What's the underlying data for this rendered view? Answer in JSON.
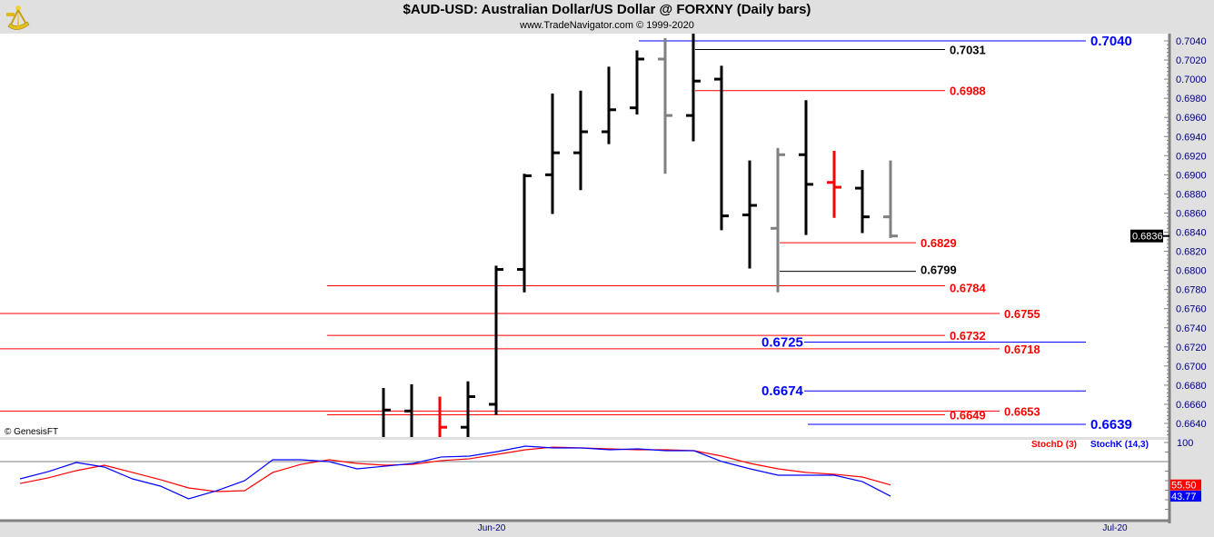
{
  "header": {
    "title": "$AUD-USD:  Australian Dollar/US Dollar @ FORXNY  (Daily bars)",
    "subtitle": "www.TradeNavigator.com © 1999-2020",
    "logo_icon": "sextant-icon"
  },
  "copyright": "© GenesisFT",
  "colors": {
    "up": "#000000",
    "down_gray": "#808080",
    "red": "#ff0000",
    "blue": "#0000ff",
    "panel_bg": "#ffffff",
    "frame_bg": "#e0e0e0"
  },
  "chart_data": [
    {
      "type": "ohlc",
      "title": "$AUD-USD:  Australian Dollar/US Dollar @ FORXNY  (Daily bars)",
      "ylim": [
        0.662,
        0.705
      ],
      "y_ticks": [
        "0.7040",
        "0.7020",
        "0.7000",
        "0.6980",
        "0.6960",
        "0.6940",
        "0.6920",
        "0.6900",
        "0.6880",
        "0.6860",
        "0.6840",
        "0.6820",
        "0.6800",
        "0.6780",
        "0.6760",
        "0.6740",
        "0.6720",
        "0.6700",
        "0.6680",
        "0.6660",
        "0.6640"
      ],
      "x_ticks": [
        {
          "label": "Jun-20",
          "index": 18
        },
        {
          "label": "Jul-20",
          "index": 40
        }
      ],
      "last_price": "0.6836",
      "bars": [
        {
          "o": null,
          "h": 0.6677,
          "l": 0.662,
          "c": 0.6654,
          "color": "black"
        },
        {
          "o": 0.6653,
          "h": 0.6681,
          "l": 0.662,
          "c": null,
          "color": "black"
        },
        {
          "o": null,
          "h": 0.6668,
          "l": 0.662,
          "c": 0.6636,
          "color": "red"
        },
        {
          "o": 0.6636,
          "h": 0.6684,
          "l": 0.662,
          "c": 0.6668,
          "color": "black"
        },
        {
          "o": 0.666,
          "h": 0.6805,
          "l": 0.6649,
          "c": 0.6801,
          "color": "black"
        },
        {
          "o": 0.6801,
          "h": 0.6901,
          "l": 0.6777,
          "c": 0.6899,
          "color": "black"
        },
        {
          "o": 0.69,
          "h": 0.6985,
          "l": 0.6859,
          "c": 0.6923,
          "color": "black"
        },
        {
          "o": 0.6923,
          "h": 0.6988,
          "l": 0.6884,
          "c": 0.6945,
          "color": "black"
        },
        {
          "o": 0.6945,
          "h": 0.7013,
          "l": 0.6932,
          "c": 0.6968,
          "color": "black"
        },
        {
          "o": 0.697,
          "h": 0.703,
          "l": 0.6963,
          "c": 0.7021,
          "color": "black"
        },
        {
          "o": 0.7021,
          "h": 0.7043,
          "l": 0.6901,
          "c": 0.6962,
          "color": "gray"
        },
        {
          "o": 0.6962,
          "h": 0.7049,
          "l": 0.6935,
          "c": 0.6998,
          "color": "black"
        },
        {
          "o": 0.7,
          "h": 0.7014,
          "l": 0.6842,
          "c": 0.6857,
          "color": "black"
        },
        {
          "o": 0.6858,
          "h": 0.6915,
          "l": 0.6802,
          "c": 0.6868,
          "color": "black"
        },
        {
          "o": 0.6844,
          "h": 0.6928,
          "l": 0.6777,
          "c": 0.6921,
          "color": "gray"
        },
        {
          "o": 0.6921,
          "h": 0.6978,
          "l": 0.6837,
          "c": 0.689,
          "color": "black"
        },
        {
          "o": 0.6892,
          "h": 0.6925,
          "l": 0.6855,
          "c": 0.6887,
          "color": "red"
        },
        {
          "o": 0.6886,
          "h": 0.6905,
          "l": 0.6839,
          "c": 0.6856,
          "color": "black"
        },
        {
          "o": 0.6856,
          "h": 0.6915,
          "l": 0.6834,
          "c": 0.6836,
          "color": "gray"
        }
      ],
      "levels": [
        {
          "value": "0.7040",
          "color": "blue",
          "from": 9,
          "to": 1195,
          "label_side": "right",
          "big": true
        },
        {
          "value": "0.7031",
          "color": "black",
          "from": 11,
          "to": 1040,
          "label_side": "right"
        },
        {
          "value": "0.6988",
          "color": "red",
          "from": 11,
          "to": 1040,
          "label_side": "right"
        },
        {
          "value": "0.6829",
          "color": "red",
          "from": 14,
          "to": 1008,
          "label_side": "right"
        },
        {
          "value": "0.6799",
          "color": "black",
          "from": 14,
          "to": 1008,
          "label_side": "right"
        },
        {
          "value": "0.6784",
          "color": "red",
          "from": -2,
          "to": 1040,
          "label_side": "right"
        },
        {
          "value": "0.6755",
          "color": "red",
          "from": -99,
          "to": 1100,
          "label_side": "right"
        },
        {
          "value": "0.6732",
          "color": "red",
          "from": -2,
          "to": 1040,
          "label_side": "right"
        },
        {
          "value": "0.6725",
          "color": "blue",
          "from": 15,
          "to": 1195,
          "label_side": "left",
          "big": true
        },
        {
          "value": "0.6718",
          "color": "red",
          "from": -99,
          "to": 1100,
          "label_side": "right"
        },
        {
          "value": "0.6674",
          "color": "blue",
          "from": 15,
          "to": 1195,
          "label_side": "left",
          "big": true
        },
        {
          "value": "0.6653",
          "color": "red",
          "from": -99,
          "to": 1100,
          "label_side": "right"
        },
        {
          "value": "0.6649",
          "color": "red",
          "from": -2,
          "to": 1040,
          "label_side": "right"
        },
        {
          "value": "0.6639",
          "color": "blue",
          "from": 15,
          "to": 1195,
          "label_side": "right",
          "big": true
        }
      ]
    },
    {
      "type": "line",
      "ylim": [
        19,
        100
      ],
      "y_ticks": [
        "100"
      ],
      "reference_line": 80,
      "series": [
        {
          "name": "StochD (3)",
          "color": "#ff0000",
          "last": "55.50",
          "values": [
            57.1,
            62.9,
            70.5,
            76.2,
            68.6,
            61.0,
            52.4,
            48.6,
            49.5,
            68.6,
            77.1,
            81.9,
            78.1,
            76.2,
            77.1,
            81.0,
            82.9,
            87.6,
            92.4,
            95.2,
            94.3,
            93.3,
            92.4,
            92.4,
            91.4,
            85.7,
            78.1,
            72.4,
            68.6,
            66.7,
            63.8,
            55.5
          ]
        },
        {
          "name": "StochK (14,3)",
          "color": "#0000ff",
          "last": "43.77",
          "values": [
            61.9,
            69.5,
            79.0,
            74.3,
            61.9,
            54.3,
            41.0,
            49.5,
            60.0,
            81.9,
            81.9,
            80.0,
            72.4,
            75.2,
            78.1,
            84.8,
            85.7,
            90.5,
            96.2,
            94.3,
            94.3,
            92.4,
            93.3,
            91.4,
            91.4,
            80.0,
            72.4,
            65.7,
            65.7,
            65.7,
            59.0,
            43.77
          ]
        }
      ]
    }
  ]
}
